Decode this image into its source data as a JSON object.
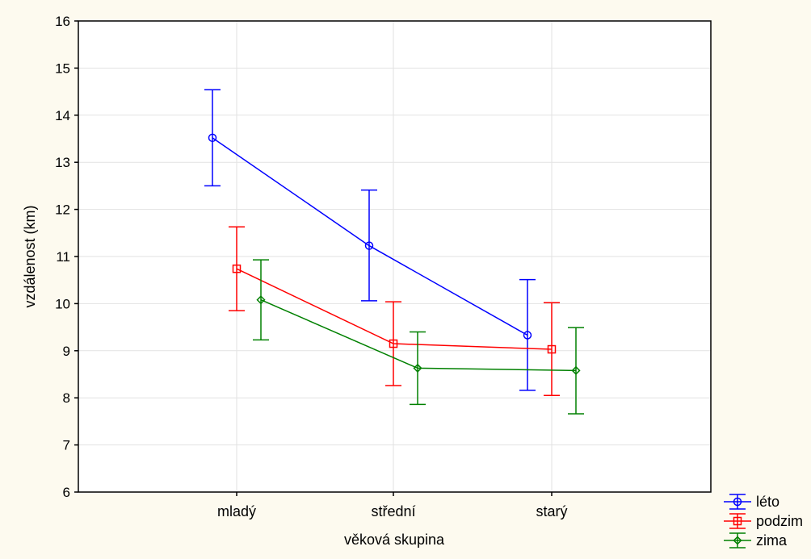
{
  "chart_data": {
    "type": "line",
    "title": "",
    "xlabel": "věková skupina",
    "ylabel": "vzdálenost (km)",
    "categories": [
      "mladý",
      "střední",
      "starý"
    ],
    "ylim": [
      6,
      16
    ],
    "yticks": [
      6,
      7,
      8,
      9,
      10,
      11,
      12,
      13,
      14,
      15,
      16
    ],
    "grid": true,
    "legend_position": "bottom-right",
    "error_bars": true,
    "series": [
      {
        "name": "léto",
        "color": "#0000ff",
        "marker": "circle",
        "values": [
          13.52,
          11.23,
          9.33
        ],
        "lower": [
          12.5,
          10.06,
          8.16
        ],
        "upper": [
          14.54,
          12.41,
          10.51
        ]
      },
      {
        "name": "podzim",
        "color": "#ff0000",
        "marker": "square",
        "values": [
          10.74,
          9.15,
          9.03
        ],
        "lower": [
          9.85,
          8.26,
          8.05
        ],
        "upper": [
          11.63,
          10.04,
          10.02
        ]
      },
      {
        "name": "zima",
        "color": "#008000",
        "marker": "diamond",
        "values": [
          10.08,
          8.63,
          8.58
        ],
        "lower": [
          9.23,
          7.86,
          7.66
        ],
        "upper": [
          10.93,
          9.4,
          9.49
        ]
      }
    ]
  }
}
